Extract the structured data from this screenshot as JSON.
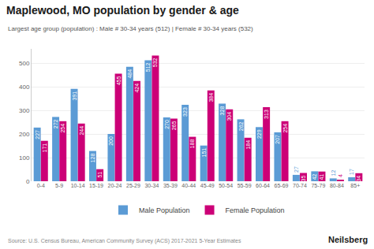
{
  "chart_data": {
    "type": "bar",
    "title": "Maplewood, MO population by gender & age",
    "subtitle": "Largest age group (population) : Male # 30-34 years (512) | Female # 30-34 years (532)",
    "annotations": [
      "Source: U.S. Census Bureau, American Community Survey (ACS) 2017-2021 5-Year Estimates",
      "Neilsberg"
    ],
    "categories": [
      "0-4",
      "5-9",
      "10-14",
      "15-19",
      "20-24",
      "25-29",
      "30-34",
      "35-39",
      "40-44",
      "45-49",
      "50-54",
      "55-59",
      "60-64",
      "65-69",
      "70-74",
      "75-79",
      "80-84",
      "85+"
    ],
    "series": [
      {
        "name": "Male Population",
        "color": "#5B9BD5",
        "values": [
          227,
          272,
          391,
          128,
          200,
          484,
          512,
          270,
          323,
          151,
          328,
          262,
          229,
          207,
          27,
          42,
          12,
          17
        ]
      },
      {
        "name": "Female Population",
        "color": "#CC0077",
        "values": [
          171,
          254,
          244,
          51,
          455,
          424,
          532,
          265,
          188,
          384,
          304,
          184,
          313,
          254,
          35,
          41,
          4,
          34
        ]
      }
    ],
    "ylim": [
      0,
      560
    ],
    "yticks": [
      0,
      100,
      200,
      300,
      400,
      500
    ],
    "grid": true,
    "data_labels": true,
    "legend": "bottom"
  }
}
